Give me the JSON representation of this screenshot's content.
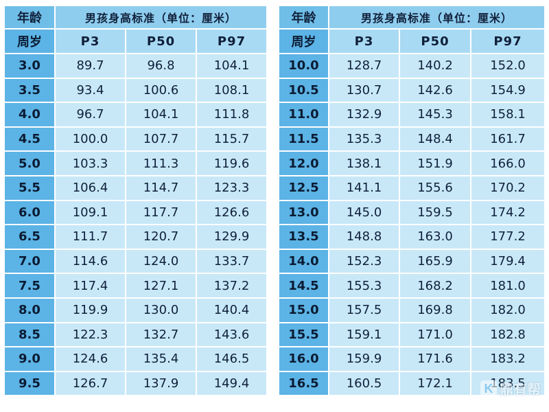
{
  "header": {
    "age_label": "年龄",
    "title": "男孩身高标准（单位：厘米）",
    "age_unit": "周岁",
    "columns": [
      "P3",
      "P50",
      "P97"
    ]
  },
  "tables": [
    {
      "rows": [
        {
          "age": "3.0",
          "p3": "89.7",
          "p50": "96.8",
          "p97": "104.1"
        },
        {
          "age": "3.5",
          "p3": "93.4",
          "p50": "100.6",
          "p97": "108.1"
        },
        {
          "age": "4.0",
          "p3": "96.7",
          "p50": "104.1",
          "p97": "111.8"
        },
        {
          "age": "4.5",
          "p3": "100.0",
          "p50": "107.7",
          "p97": "115.7"
        },
        {
          "age": "5.0",
          "p3": "103.3",
          "p50": "111.3",
          "p97": "119.6"
        },
        {
          "age": "5.5",
          "p3": "106.4",
          "p50": "114.7",
          "p97": "123.3"
        },
        {
          "age": "6.0",
          "p3": "109.1",
          "p50": "117.7",
          "p97": "126.6"
        },
        {
          "age": "6.5",
          "p3": "111.7",
          "p50": "120.7",
          "p97": "129.9"
        },
        {
          "age": "7.0",
          "p3": "114.6",
          "p50": "124.0",
          "p97": "133.7"
        },
        {
          "age": "7.5",
          "p3": "117.4",
          "p50": "127.1",
          "p97": "137.2"
        },
        {
          "age": "8.0",
          "p3": "119.9",
          "p50": "130.0",
          "p97": "140.4"
        },
        {
          "age": "8.5",
          "p3": "122.3",
          "p50": "132.7",
          "p97": "143.6"
        },
        {
          "age": "9.0",
          "p3": "124.6",
          "p50": "135.4",
          "p97": "146.5"
        },
        {
          "age": "9.5",
          "p3": "126.7",
          "p50": "137.9",
          "p97": "149.4"
        }
      ]
    },
    {
      "rows": [
        {
          "age": "10.0",
          "p3": "128.7",
          "p50": "140.2",
          "p97": "152.0"
        },
        {
          "age": "10.5",
          "p3": "130.7",
          "p50": "142.6",
          "p97": "154.9"
        },
        {
          "age": "11.0",
          "p3": "132.9",
          "p50": "145.3",
          "p97": "158.1"
        },
        {
          "age": "11.5",
          "p3": "135.3",
          "p50": "148.4",
          "p97": "161.7"
        },
        {
          "age": "12.0",
          "p3": "138.1",
          "p50": "151.9",
          "p97": "166.0"
        },
        {
          "age": "12.5",
          "p3": "141.1",
          "p50": "155.6",
          "p97": "170.2"
        },
        {
          "age": "13.0",
          "p3": "145.0",
          "p50": "159.5",
          "p97": "174.2"
        },
        {
          "age": "13.5",
          "p3": "148.8",
          "p50": "163.0",
          "p97": "177.2"
        },
        {
          "age": "14.0",
          "p3": "152.3",
          "p50": "165.9",
          "p97": "179.4"
        },
        {
          "age": "14.5",
          "p3": "155.3",
          "p50": "168.2",
          "p97": "181.0"
        },
        {
          "age": "15.0",
          "p3": "157.5",
          "p50": "169.8",
          "p97": "182.0"
        },
        {
          "age": "15.5",
          "p3": "159.1",
          "p50": "171.0",
          "p97": "182.8"
        },
        {
          "age": "16.0",
          "p3": "159.9",
          "p50": "171.6",
          "p97": "183.2"
        },
        {
          "age": "16.5",
          "p3": "160.5",
          "p50": "172.1",
          "p97": "183.5"
        }
      ]
    }
  ],
  "watermark": {
    "text": "鼎有帮",
    "icon": "k-logo-icon"
  }
}
